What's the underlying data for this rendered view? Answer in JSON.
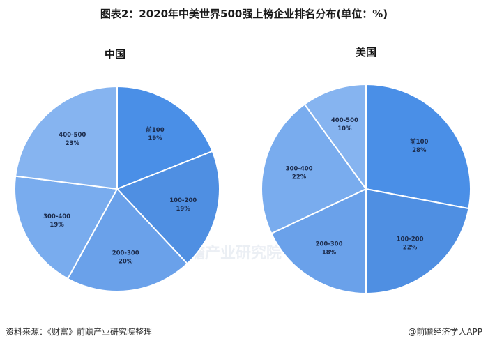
{
  "title": "图表2：2020年中美世界500强上榜企业排名分布(单位：%)",
  "footer": {
    "source": "资料来源：《财富》前瞻产业研究院整理",
    "brand": "@前瞻经济学人APP"
  },
  "watermark": "前瞻产业研究院",
  "colors": {
    "slice_1": "#4a8fe7",
    "slice_2": "#4f8fe2",
    "slice_3": "#6aa1ea",
    "slice_4": "#79acee",
    "slice_5": "#86b4f0",
    "stroke": "#ffffff"
  },
  "chart_data": [
    {
      "type": "pie",
      "title": "中国",
      "categories": [
        "前100",
        "100-200",
        "200-300",
        "300-400",
        "400-500"
      ],
      "values": [
        19,
        19,
        20,
        19,
        23
      ],
      "labels": [
        "19%",
        "19%",
        "20%",
        "19%",
        "23%"
      ]
    },
    {
      "type": "pie",
      "title": "美国",
      "categories": [
        "前100",
        "100-200",
        "200-300",
        "300-400",
        "400-500"
      ],
      "values": [
        28,
        22,
        18,
        22,
        10
      ],
      "labels": [
        "28%",
        "22%",
        "18%",
        "22%",
        "10%"
      ]
    }
  ]
}
